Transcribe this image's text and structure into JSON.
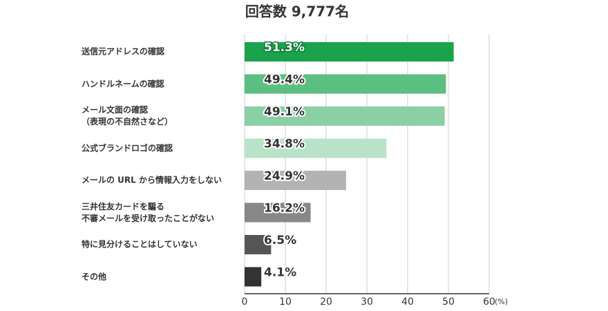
{
  "chart_data": {
    "type": "hbar",
    "title": "回答数 9,777名",
    "categories": [
      "送信元アドレスの確認",
      "ハンドルネームの確認",
      "メール文面の確認\n（表現の不自然さなど）",
      "公式ブランドロゴの確認",
      "メールの URL から情報入力をしない",
      "三井住友カードを騙る\n不審メールを受け取ったことがない",
      "特に見分けることはしていない",
      "その他"
    ],
    "values": [
      51.3,
      49.4,
      49.1,
      34.8,
      24.9,
      16.2,
      6.5,
      4.1
    ],
    "value_labels": [
      "51.3%",
      "49.4%",
      "49.1%",
      "34.8%",
      "24.9%",
      "16.2%",
      "6.5%",
      "4.1%"
    ],
    "colors": [
      "#1aa34a",
      "#5bbf7f",
      "#8bd0a5",
      "#b9e3c8",
      "#b3b3b3",
      "#888888",
      "#555555",
      "#333333"
    ],
    "xlim": [
      0,
      60
    ],
    "xticks": [
      0,
      10,
      20,
      30,
      40,
      50,
      60
    ],
    "xlabel": "(%)",
    "grid": true
  }
}
